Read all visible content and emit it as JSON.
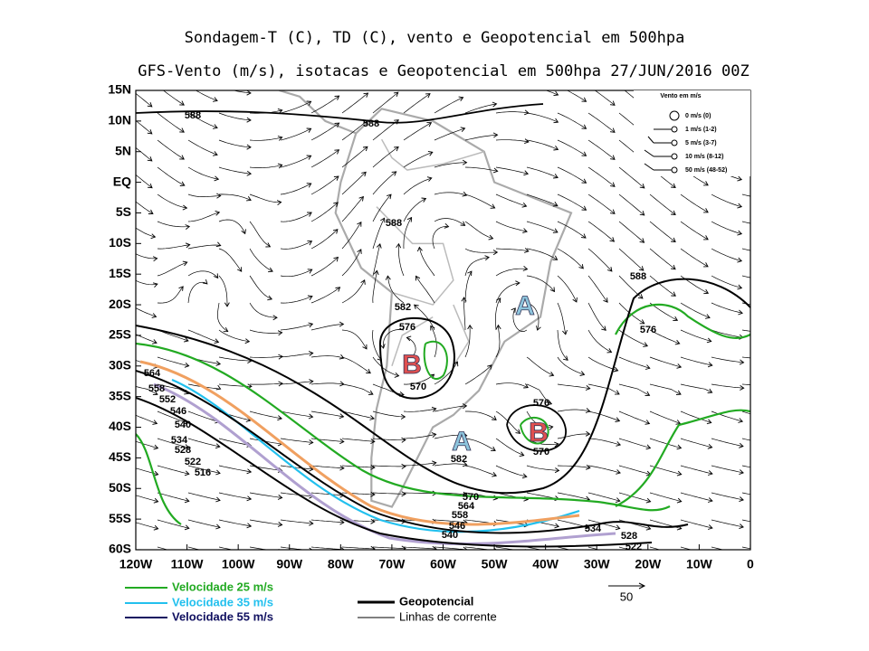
{
  "header": {
    "title": "Sondagem-T (C), TD (C), vento e Geopotencial em 500hpa",
    "subtitle": "GFS-Vento (m/s), isotacas e Geopotencial em 500hpa 27/JUN/2016 00Z"
  },
  "map": {
    "lat_labels": [
      "15N",
      "10N",
      "5N",
      "EQ",
      "5S",
      "10S",
      "15S",
      "20S",
      "25S",
      "30S",
      "35S",
      "40S",
      "45S",
      "50S",
      "55S",
      "60S"
    ],
    "lon_labels": [
      "120W",
      "110W",
      "100W",
      "90W",
      "80W",
      "70W",
      "60W",
      "50W",
      "40W",
      "30W",
      "20W",
      "10W",
      "0"
    ],
    "contour_labels": [
      "588",
      "588",
      "588",
      "588",
      "582",
      "576",
      "570",
      "576",
      "576",
      "570",
      "582",
      "564",
      "558",
      "552",
      "546",
      "540",
      "534",
      "528",
      "522",
      "516",
      "570",
      "564",
      "558",
      "546",
      "540",
      "534",
      "528",
      "522"
    ],
    "centers": [
      "A",
      "A",
      "B",
      "B"
    ]
  },
  "wind_legend": {
    "title": "Vento em m/s",
    "entries": [
      "0 m/s (0)",
      "1 m/s (1-2)",
      "5 m/s (3-7)",
      "10 m/s (8-12)",
      "50 m/s (48-52)"
    ]
  },
  "legend": {
    "isotachs": [
      "Velocidade 25 m/s",
      "Velocidade 35 m/s",
      "Velocidade 55 m/s"
    ],
    "lines": [
      "Geopotencial",
      "Linhas de corrente"
    ],
    "scale": "50"
  }
}
